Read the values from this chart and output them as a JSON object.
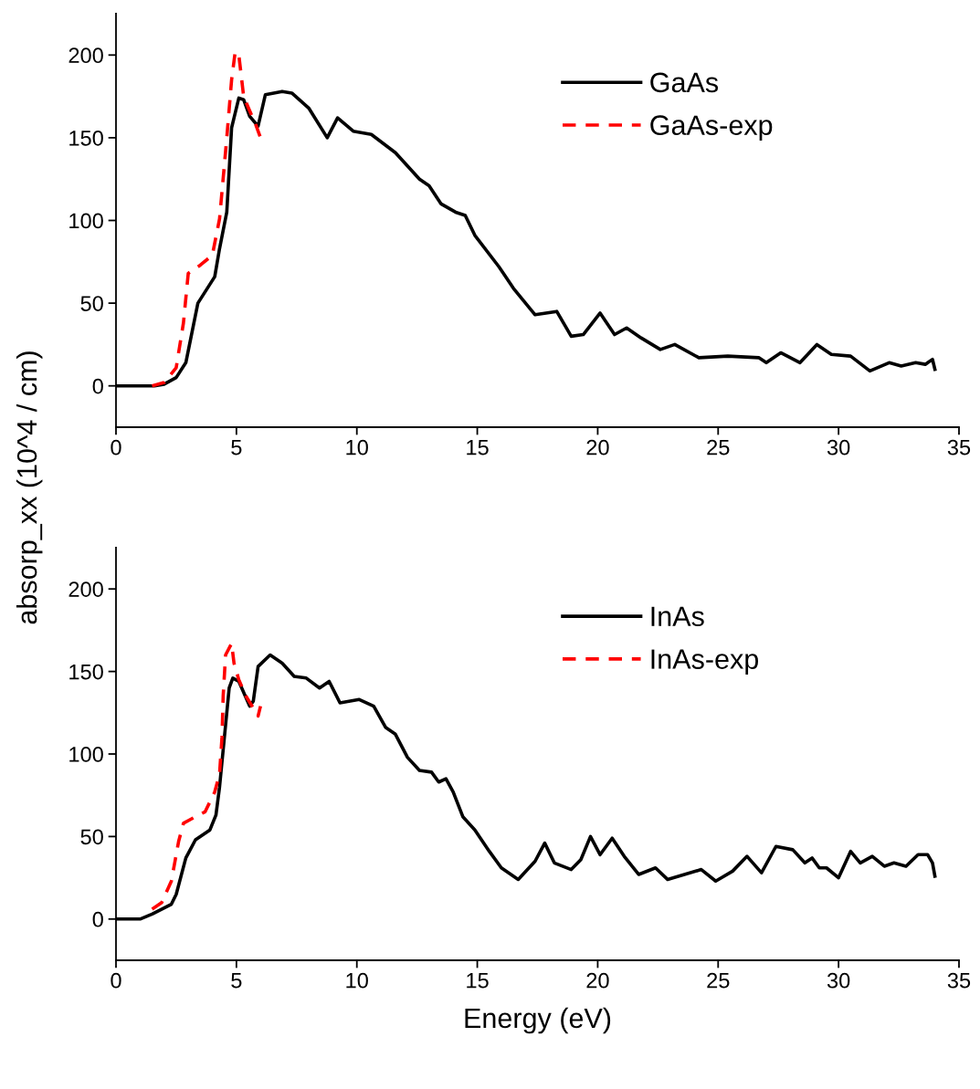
{
  "chart_data": [
    {
      "type": "line",
      "ylabel": "absorp_xx (10^4 / cm)",
      "xlim": [
        0,
        35
      ],
      "xticks": [
        0,
        5,
        10,
        15,
        20,
        25,
        30,
        35
      ],
      "ylim": [
        -25,
        225
      ],
      "yticks": [
        0,
        50,
        100,
        150,
        200
      ],
      "grid": false,
      "legend": "top right",
      "series": [
        {
          "name": "GaAs",
          "color": "#000000",
          "line_style": "solid",
          "x": [
            0,
            1.6,
            2.0,
            2.5,
            2.9,
            3.4,
            4.1,
            4.3,
            4.6,
            4.8,
            5.1,
            5.3,
            5.55,
            5.9,
            6.2,
            6.9,
            7.3,
            8.0,
            8.77,
            9.2,
            9.85,
            10.6,
            11.6,
            12.6,
            13.0,
            13.5,
            14.1,
            14.5,
            14.9,
            15.9,
            16.5,
            17.4,
            18.3,
            18.9,
            19.4,
            20.1,
            20.7,
            21.2,
            21.8,
            22.6,
            23.2,
            24.2,
            25.4,
            26.7,
            27.0,
            27.6,
            28.4,
            29.1,
            29.7,
            30.5,
            31.3,
            32.1,
            32.6,
            33.2,
            33.6,
            33.9,
            34.0
          ],
          "values": [
            0,
            0,
            1,
            5,
            14,
            50,
            66,
            83,
            105,
            156,
            174,
            173,
            163,
            157,
            176,
            178,
            177,
            168,
            150,
            162,
            154,
            152,
            141,
            125,
            121,
            110,
            105,
            103,
            91,
            72,
            59,
            43,
            45,
            30,
            31,
            44,
            31,
            35,
            29,
            22,
            25,
            17,
            18,
            17,
            14,
            20,
            14,
            25,
            19,
            18,
            9,
            14,
            12,
            14,
            13,
            16,
            10
          ]
        },
        {
          "name": "GaAs-exp",
          "color": "#ff0000",
          "line_style": "dashed",
          "x": [
            1.5,
            2.0,
            2.5,
            2.8,
            3.0,
            3.5,
            4.0,
            4.3,
            4.6,
            4.8,
            4.95,
            5.1,
            5.3,
            5.5,
            5.8,
            6.0
          ],
          "values": [
            0,
            2,
            11,
            38,
            68,
            73,
            79,
            101,
            150,
            185,
            202,
            200,
            175,
            168,
            158,
            150
          ]
        }
      ]
    },
    {
      "type": "line",
      "xlabel": "Energy (eV)",
      "xlim": [
        0,
        35
      ],
      "xticks": [
        0,
        5,
        10,
        15,
        20,
        25,
        30,
        35
      ],
      "ylim": [
        -25,
        225
      ],
      "yticks": [
        0,
        50,
        100,
        150,
        200
      ],
      "grid": false,
      "legend": "top right",
      "series": [
        {
          "name": "InAs",
          "color": "#000000",
          "line_style": "solid",
          "x": [
            0,
            1.0,
            1.5,
            2.3,
            2.5,
            2.9,
            3.3,
            3.9,
            4.15,
            4.3,
            4.5,
            4.7,
            4.85,
            5.1,
            5.55,
            5.7,
            5.9,
            6.4,
            6.9,
            7.4,
            7.9,
            8.45,
            8.85,
            9.3,
            10.1,
            10.7,
            11.2,
            11.6,
            12.1,
            12.6,
            13.1,
            13.4,
            13.7,
            14.0,
            14.4,
            14.9,
            15.5,
            16.0,
            16.7,
            17.4,
            17.8,
            18.2,
            18.9,
            19.3,
            19.7,
            20.1,
            20.6,
            21.1,
            21.7,
            22.4,
            22.9,
            23.6,
            24.3,
            24.9,
            25.6,
            26.2,
            26.8,
            27.4,
            28.1,
            28.6,
            28.9,
            29.2,
            29.5,
            30.0,
            30.5,
            30.9,
            31.4,
            31.9,
            32.3,
            32.8,
            33.3,
            33.7,
            33.9,
            34.0
          ],
          "values": [
            0,
            0,
            3,
            9,
            15,
            37,
            48,
            54,
            63,
            80,
            110,
            140,
            146,
            144,
            129,
            132,
            153,
            160,
            155,
            147,
            146,
            140,
            144,
            131,
            133,
            129,
            116,
            112,
            98,
            90,
            89,
            83,
            85,
            77,
            62,
            54,
            41,
            31,
            24,
            35,
            46,
            34,
            30,
            36,
            50,
            39,
            49,
            38,
            27,
            31,
            24,
            27,
            30,
            23,
            29,
            38,
            28,
            44,
            42,
            34,
            37,
            31,
            31,
            25,
            41,
            34,
            38,
            32,
            34,
            32,
            39,
            39,
            34,
            26
          ]
        },
        {
          "name": "InAs-exp",
          "color": "#ff0000",
          "line_style": "dashed",
          "x": [
            1.5,
            1.9,
            2.3,
            2.45,
            2.6,
            2.8,
            3.3,
            3.7,
            4.1,
            4.3,
            4.4,
            4.45,
            4.55,
            4.8,
            4.9,
            5.1,
            5.4,
            5.9,
            6.0
          ],
          "values": [
            6,
            10,
            23,
            35,
            47,
            58,
            62,
            65,
            77,
            88,
            110,
            135,
            160,
            167,
            155,
            145,
            135,
            123,
            129
          ]
        }
      ]
    }
  ]
}
